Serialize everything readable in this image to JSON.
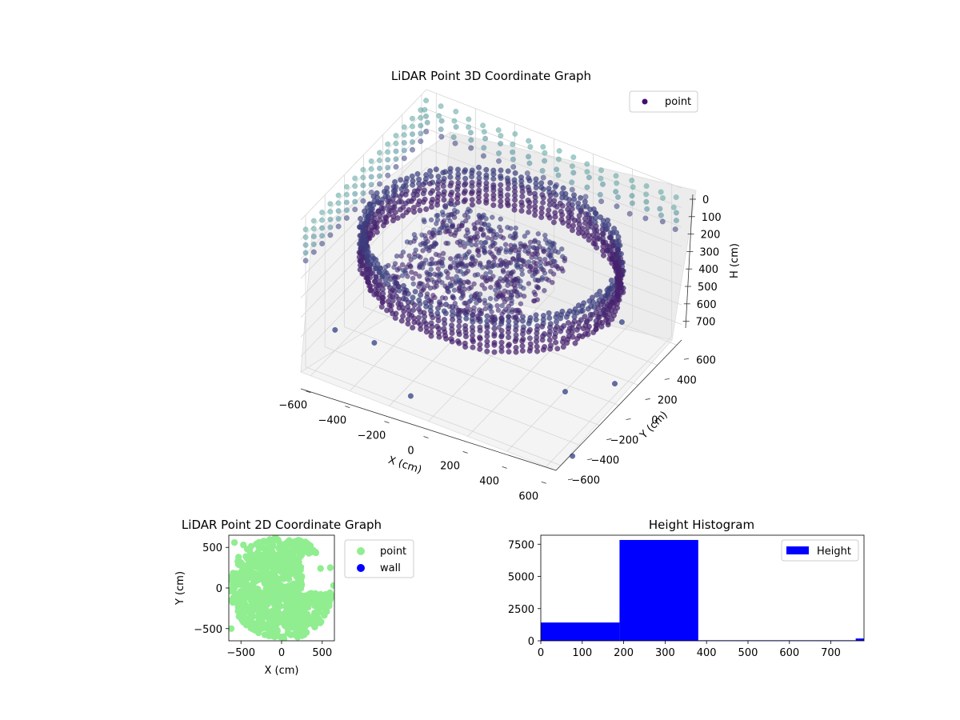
{
  "chart_data": [
    {
      "type": "scatter3d",
      "title": "LiDAR Point 3D Coordinate Graph",
      "xlabel": "X (cm)",
      "ylabel": "Y (cm)",
      "zlabel": "H (cm)",
      "x_ticks": [
        "−600",
        "−400",
        "−200",
        "0",
        "200",
        "400",
        "600"
      ],
      "y_ticks": [
        "−600",
        "−400",
        "−200",
        "0",
        "200",
        "400",
        "600"
      ],
      "z_ticks": [
        "0",
        "100",
        "200",
        "300",
        "400",
        "500",
        "600",
        "700"
      ],
      "xlim": [
        -650,
        650
      ],
      "ylim": [
        -650,
        650
      ],
      "zlim": [
        0,
        780
      ],
      "z_inverted": true,
      "grid": true,
      "legend": {
        "placement": "top-right",
        "entries": [
          {
            "label": "point",
            "color": "#440f6e"
          }
        ]
      },
      "colormap": "viridis",
      "description_series": {
        "wall_ring": {
          "radius_cm": 590,
          "height_range_cm": [
            200,
            380
          ],
          "center": [
            0,
            0
          ]
        },
        "interior_cluster": {
          "x_range_cm": [
            -300,
            300
          ],
          "y_range_cm": [
            -400,
            300
          ],
          "height_range_cm": [
            200,
            330
          ]
        },
        "upper_grid": {
          "height_range_cm": [
            0,
            200
          ],
          "color": "#5aa39c"
        }
      }
    },
    {
      "type": "scatter",
      "title": "LiDAR Point 2D Coordinate Graph",
      "xlabel": "X (cm)",
      "ylabel": "Y (cm)",
      "x_ticks": [
        "−500",
        "0",
        "500"
      ],
      "y_ticks": [
        "−500",
        "0",
        "500"
      ],
      "xlim": [
        -650,
        650
      ],
      "ylim": [
        -650,
        650
      ],
      "legend": {
        "placement": "outside-right",
        "entries": [
          {
            "label": "point",
            "color": "#90ee90"
          },
          {
            "label": "wall",
            "color": "#0000ff"
          }
        ]
      }
    },
    {
      "type": "bar",
      "title": "Height Histogram",
      "x_ticks": [
        "0",
        "100",
        "200",
        "300",
        "400",
        "500",
        "600",
        "700"
      ],
      "y_ticks": [
        "0",
        "2500",
        "5000",
        "7500"
      ],
      "xlim": [
        0,
        780
      ],
      "ylim": [
        0,
        8200
      ],
      "bins": [
        {
          "start": 0,
          "end": 190,
          "value": 1420
        },
        {
          "start": 190,
          "end": 380,
          "value": 7830
        },
        {
          "start": 380,
          "end": 570,
          "value": 40
        },
        {
          "start": 570,
          "end": 760,
          "value": 40
        },
        {
          "start": 760,
          "end": 780,
          "value": 180
        }
      ],
      "color": "#0000ff",
      "legend": {
        "placement": "top-right",
        "entries": [
          {
            "label": "Height",
            "color": "#0000ff"
          }
        ]
      }
    }
  ]
}
